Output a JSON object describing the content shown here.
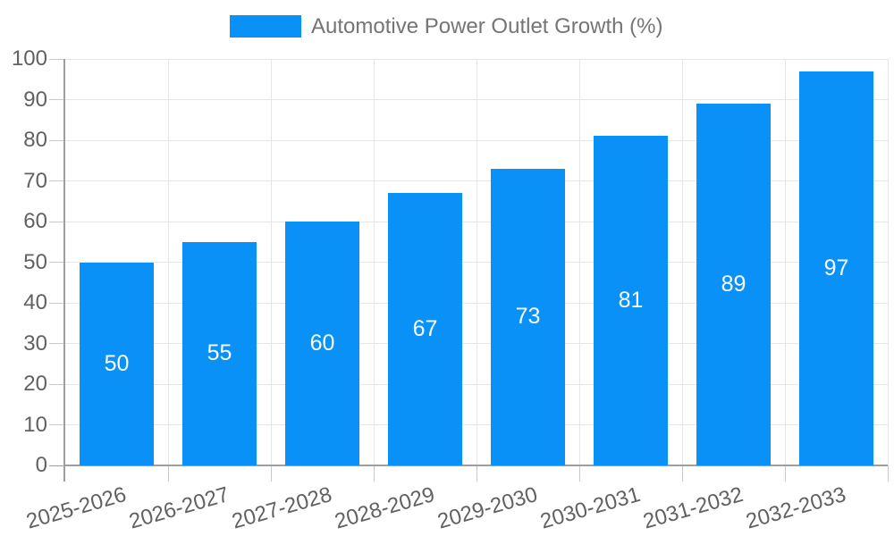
{
  "chart_data": {
    "type": "bar",
    "title": "",
    "xlabel": "",
    "ylabel": "",
    "categories": [
      "2025-2026",
      "2026-2027",
      "2027-2028",
      "2028-2029",
      "2029-2030",
      "2030-2031",
      "2031-2032",
      "2032-2033"
    ],
    "series": [
      {
        "name": "Automotive Power Outlet Growth (%)",
        "values": [
          50,
          55,
          60,
          67,
          73,
          81,
          89,
          97
        ]
      }
    ],
    "bar_value_labels": [
      "50",
      "55",
      "60",
      "67",
      "73",
      "81",
      "89",
      "97"
    ],
    "ylim": [
      0,
      100
    ],
    "yticks": [
      0,
      10,
      20,
      30,
      40,
      50,
      60,
      70,
      80,
      90,
      100
    ],
    "grid": true,
    "legend_position": "top",
    "colors": {
      "bar": "#0991f8",
      "grid": "#e6e6e6",
      "axis": "#9e9e9e",
      "tick": "#c9c9c9",
      "axis_text": "#616161",
      "legend_text": "#757575",
      "bar_label_text": "#ffffff",
      "background": "#ffffff"
    }
  }
}
